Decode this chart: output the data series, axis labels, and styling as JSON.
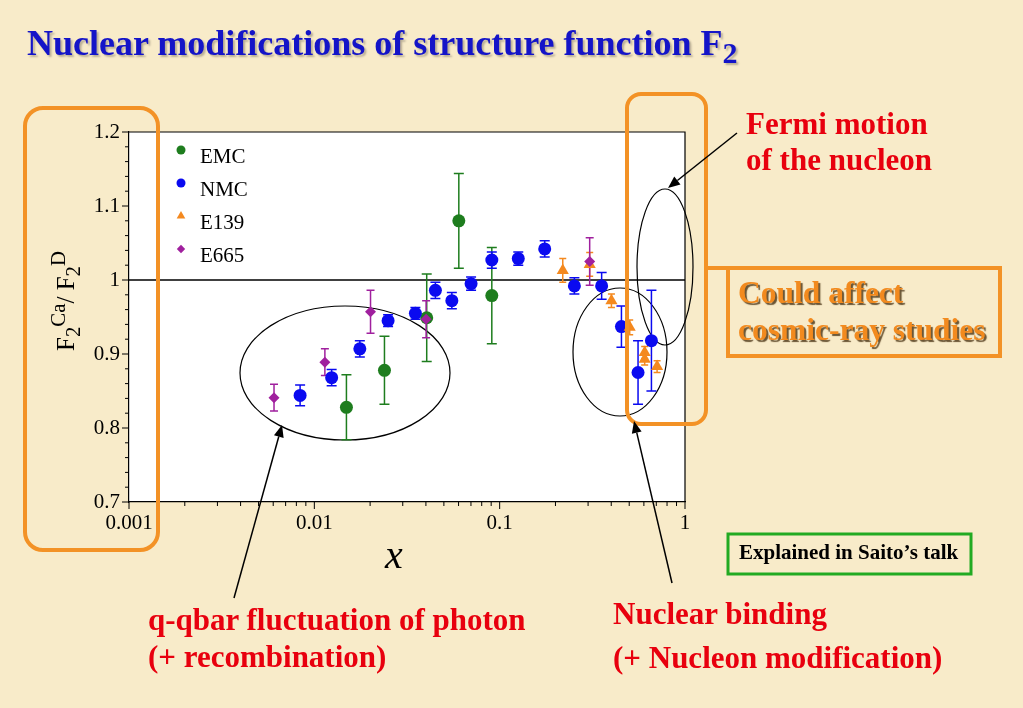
{
  "chart_data": {
    "type": "scatter",
    "title": "Nuclear modifications of structure function F$_{2}$",
    "xlabel": "x",
    "ylabel": "F$_{2}$$^{Ca}$/ F$_{2}$$^{D}$",
    "log": "x",
    "xlim": [
      0.001,
      1
    ],
    "xticks": [
      0.001,
      {
        "value": 0.002,
        "label": null
      },
      {
        "value": 0.003,
        "label": null
      },
      {
        "value": 0.004,
        "label": null
      },
      {
        "value": 0.005,
        "label": null
      },
      {
        "value": 0.006,
        "label": null
      },
      {
        "value": 0.007,
        "label": null
      },
      {
        "value": 0.008,
        "label": null
      },
      {
        "value": 0.009,
        "label": null
      },
      0.01,
      {
        "value": 0.02,
        "label": null
      },
      {
        "value": 0.03,
        "label": null
      },
      {
        "value": 0.04,
        "label": null
      },
      {
        "value": 0.05,
        "label": null
      },
      {
        "value": 0.06,
        "label": null
      },
      {
        "value": 0.07,
        "label": null
      },
      {
        "value": 0.08,
        "label": null
      },
      {
        "value": 0.09,
        "label": null
      },
      0.1,
      {
        "value": 0.2,
        "label": null
      },
      {
        "value": 0.3,
        "label": null
      },
      {
        "value": 0.4,
        "label": null
      },
      {
        "value": 0.5,
        "label": null
      },
      {
        "value": 0.6,
        "label": null
      },
      {
        "value": 0.7,
        "label": null
      },
      {
        "value": 0.8,
        "label": null
      },
      {
        "value": 0.9,
        "label": null
      },
      1
    ],
    "ylim": [
      0.7,
      1.2
    ],
    "yticks": [
      0.7,
      {
        "value": 0.72,
        "label": null
      },
      {
        "value": 0.74,
        "label": null
      },
      {
        "value": 0.76,
        "label": null
      },
      {
        "value": 0.78,
        "label": null
      },
      0.8,
      {
        "value": 0.82,
        "label": null
      },
      {
        "value": 0.84,
        "label": null
      },
      {
        "value": 0.86,
        "label": null
      },
      {
        "value": 0.88,
        "label": null
      },
      0.9,
      {
        "value": 0.92,
        "label": null
      },
      {
        "value": 0.94,
        "label": null
      },
      {
        "value": 0.96,
        "label": null
      },
      {
        "value": 0.98,
        "label": null
      },
      1,
      {
        "value": 1.02,
        "label": null
      },
      {
        "value": 1.04,
        "label": null
      },
      {
        "value": 1.06,
        "label": null
      },
      {
        "value": 1.08,
        "label": null
      },
      1.1,
      {
        "value": 1.12,
        "label": null
      },
      {
        "value": 1.14,
        "label": null
      },
      {
        "value": 1.16,
        "label": null
      },
      {
        "value": 1.18,
        "label": null
      },
      1.2
    ],
    "legend": "top left",
    "ref_lines": [
      {
        "axis": "y",
        "value": 1,
        "color": "#000000"
      }
    ],
    "series": [
      {
        "name": "EMC",
        "color": "#1e7d1e",
        "marker": "circle",
        "x": [
          0.0149,
          0.0239,
          0.0404,
          0.0602,
          0.0907
        ],
        "values": [
          0.828,
          0.878,
          0.949,
          1.08,
          0.979
        ],
        "errors": [
          0.044,
          0.046,
          0.059,
          0.064,
          0.065
        ]
      },
      {
        "name": "NMC",
        "color": "#0a0af0",
        "marker": "circle",
        "x": [
          0.00838,
          0.0124,
          0.0176,
          0.025,
          0.0351,
          0.045,
          0.0552,
          0.0701,
          0.0907,
          0.126,
          0.175,
          0.253,
          0.355,
          0.454,
          0.558,
          0.659
        ],
        "values": [
          0.844,
          0.868,
          0.907,
          0.945,
          0.955,
          0.986,
          0.972,
          0.995,
          1.027,
          1.029,
          1.042,
          0.992,
          0.992,
          0.937,
          0.875,
          0.918
        ],
        "errors": [
          0.014,
          0.011,
          0.011,
          0.008,
          0.008,
          0.011,
          0.011,
          0.009,
          0.011,
          0.009,
          0.011,
          0.011,
          0.018,
          0.028,
          0.043,
          0.068
        ]
      },
      {
        "name": "E139",
        "color": "#f4891f",
        "marker": "triangle",
        "x": [
          0.219,
          0.306,
          0.401,
          0.503,
          0.606,
          0.606,
          0.707
        ],
        "values": [
          1.013,
          1.021,
          0.972,
          0.936,
          0.902,
          0.893,
          0.883
        ],
        "errors": [
          0.016,
          0.016,
          0.009,
          0.01,
          0.008,
          0.008,
          0.008
        ]
      },
      {
        "name": "E665",
        "color": "#a0209e",
        "marker": "diamond",
        "x": [
          0.00606,
          0.0114,
          0.0201,
          0.0401,
          0.306
        ],
        "values": [
          0.841,
          0.889,
          0.957,
          0.947,
          1.025
        ],
        "errors": [
          0.018,
          0.018,
          0.029,
          0.025,
          0.032
        ]
      }
    ],
    "annotations": [
      "Fermi motion\nof the nucleon",
      "Could affect\ncosmic-ray studies",
      "Explained in Saito’s talk",
      "q-qbar fluctuation of photon\n(+ recombination)",
      "Nuclear binding\n(+ Nucleon modification)"
    ]
  }
}
